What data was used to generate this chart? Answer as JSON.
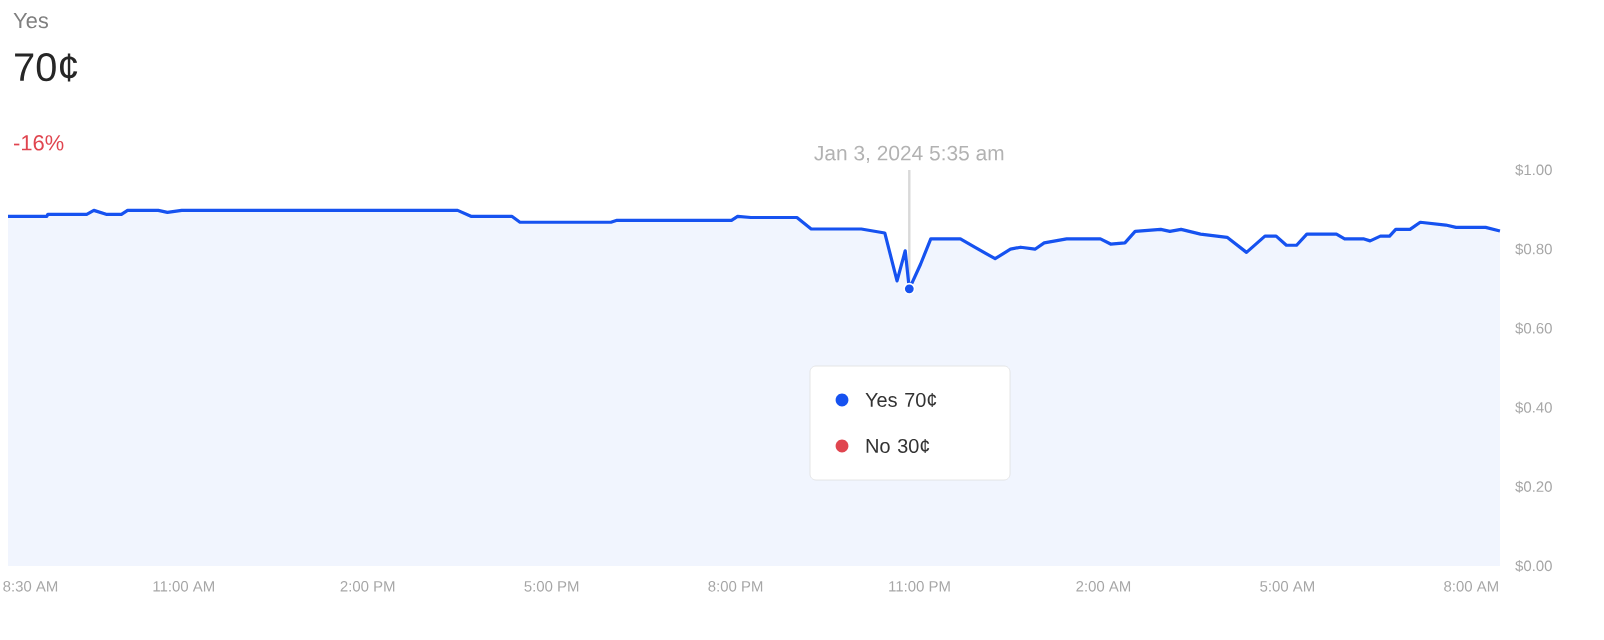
{
  "chart_data": {
    "type": "area",
    "title": "Yes",
    "subtitle": "70¢",
    "annotations": [
      "-16%",
      "Jan 3, 2024 5:35 am",
      "Yes 70¢",
      "No 30¢"
    ],
    "x": [
      "2024-01-02T08:08",
      "2024-01-02T08:46",
      "2024-01-02T08:47",
      "2024-01-02T09:25",
      "2024-01-02T09:32",
      "2024-01-02T09:44",
      "2024-01-02T09:59",
      "2024-01-02T10:05",
      "2024-01-02T10:35",
      "2024-01-02T10:44",
      "2024-01-02T10:58",
      "2024-01-02T15:28",
      "2024-01-02T15:41",
      "2024-01-02T16:21",
      "2024-01-02T16:29",
      "2024-01-02T17:58",
      "2024-01-02T18:04",
      "2024-01-02T19:56",
      "2024-01-02T20:02",
      "2024-01-02T20:15",
      "2024-01-02T21:00",
      "2024-01-02T21:14",
      "2024-01-02T22:03",
      "2024-01-02T22:26",
      "2024-01-02T22:38",
      "2024-01-02T22:46",
      "2024-01-02T22:50",
      "2024-01-02T23:01",
      "2024-01-02T23:11",
      "2024-01-02T23:40",
      "2024-01-02T23:54",
      "2024-01-03T00:14",
      "2024-01-03T00:29",
      "2024-01-03T00:39",
      "2024-01-03T00:53",
      "2024-01-03T01:02",
      "2024-01-03T01:24",
      "2024-01-03T01:57",
      "2024-01-03T02:07",
      "2024-01-03T02:21",
      "2024-01-03T02:31",
      "2024-01-03T02:56",
      "2024-01-03T03:05",
      "2024-01-03T03:16",
      "2024-01-03T03:35",
      "2024-01-03T04:01",
      "2024-01-03T04:20",
      "2024-01-03T04:38",
      "2024-01-03T04:49",
      "2024-01-03T04:59",
      "2024-01-03T05:09",
      "2024-01-03T05:19",
      "2024-01-03T05:48",
      "2024-01-03T05:56",
      "2024-01-03T06:15",
      "2024-01-03T06:21",
      "2024-01-03T06:31",
      "2024-01-03T06:40",
      "2024-01-03T06:46",
      "2024-01-03T07:00",
      "2024-01-03T07:10",
      "2024-01-03T07:35",
      "2024-01-03T07:45",
      "2024-01-03T08:14",
      "2024-01-03T08:28"
    ],
    "series": [
      {
        "color": "#1652f0",
        "values": [
          0.883,
          0.883,
          0.888,
          0.888,
          0.898,
          0.888,
          0.888,
          0.898,
          0.898,
          0.893,
          0.898,
          0.898,
          0.883,
          0.883,
          0.868,
          0.868,
          0.873,
          0.873,
          0.883,
          0.88,
          0.88,
          0.851,
          0.851,
          0.841,
          0.72,
          0.796,
          0.7,
          0.762,
          0.826,
          0.826,
          0.805,
          0.776,
          0.8,
          0.805,
          0.8,
          0.816,
          0.826,
          0.826,
          0.813,
          0.816,
          0.845,
          0.85,
          0.845,
          0.85,
          0.838,
          0.83,
          0.792,
          0.833,
          0.833,
          0.81,
          0.81,
          0.838,
          0.838,
          0.826,
          0.826,
          0.821,
          0.833,
          0.833,
          0.85,
          0.85,
          0.868,
          0.861,
          0.855,
          0.855,
          0.846
        ]
      },
      {
        "type": "scatter",
        "color": "#1652f0",
        "x": [
          "2024-01-02T22:50"
        ],
        "values": [
          0.7
        ]
      }
    ],
    "xlim": [
      "2024-01-02T08:08",
      "2024-01-03T08:32"
    ],
    "xticks": [
      {
        "value": "2024-01-02T08:30",
        "label": "8:30 AM"
      },
      {
        "value": "2024-01-02T11:00",
        "label": "11:00 AM"
      },
      {
        "value": "2024-01-02T14:00",
        "label": "2:00 PM"
      },
      {
        "value": "2024-01-02T17:00",
        "label": "5:00 PM"
      },
      {
        "value": "2024-01-02T20:00",
        "label": "8:00 PM"
      },
      {
        "value": "2024-01-02T23:00",
        "label": "11:00 PM"
      },
      {
        "value": "2024-01-03T02:00",
        "label": "2:00 AM"
      },
      {
        "value": "2024-01-03T05:00",
        "label": "5:00 AM"
      },
      {
        "value": "2024-01-03T08:00",
        "label": "8:00 AM"
      }
    ],
    "ylim": [
      0,
      1.0
    ],
    "yticks": [
      {
        "value": 0,
        "label": "$0.00"
      },
      {
        "value": 0.2,
        "label": "$0.20"
      },
      {
        "value": 0.4,
        "label": "$0.40"
      },
      {
        "value": 0.6,
        "label": "$0.60"
      },
      {
        "value": 0.8,
        "label": "$0.80"
      },
      {
        "value": 1.0,
        "label": "$1.00"
      }
    ],
    "ref_lines": [
      {
        "axis": "x",
        "value": "2024-01-02T22:50",
        "color": "#d9d9d9"
      }
    ],
    "grid": false
  }
}
